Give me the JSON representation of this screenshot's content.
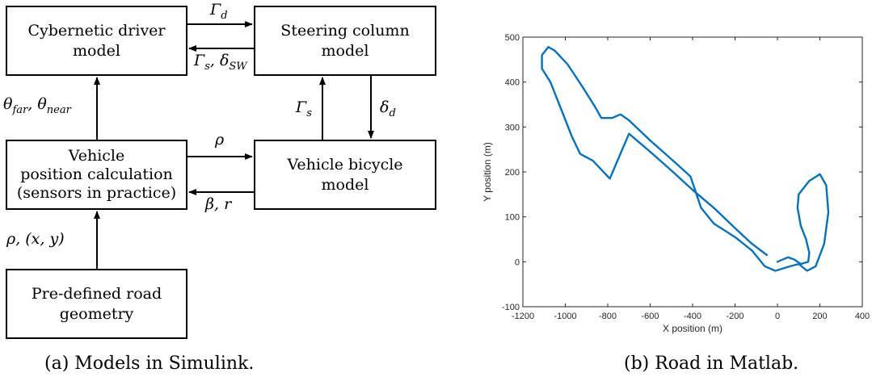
{
  "diagram": {
    "boxes": {
      "driver": "Cybernetic driver\nmodel",
      "steering": "Steering column\nmodel",
      "position": "Vehicle\nposition calculation\n(sensors in practice)",
      "bicycle": "Vehicle bicycle\nmodel",
      "road": "Pre-defined road\ngeometry"
    },
    "signals": {
      "gamma_d": "Γd",
      "gamma_s_delta_sw": "Γs, δSW",
      "theta": "θfar, θnear",
      "gamma_s": "Γs",
      "delta_d": "δd",
      "rho": "ρ",
      "beta_r": "β, r",
      "rho_xy": "ρ, (x, y)"
    },
    "caption": "(a) Models in Simulink."
  },
  "plot_caption": "(b) Road in Matlab.",
  "chart_data": {
    "type": "line",
    "title": "",
    "xlabel": "X position (m)",
    "ylabel": "Y position (m)",
    "xlim": [
      -1200,
      400
    ],
    "ylim": [
      -100,
      500
    ],
    "xticks": [
      -1200,
      -1000,
      -800,
      -600,
      -400,
      -200,
      0,
      200,
      400
    ],
    "yticks": [
      -100,
      0,
      100,
      200,
      300,
      400,
      500
    ],
    "grid": false,
    "series": [
      {
        "color": "#0072BD",
        "points": [
          [
            -50,
            15
          ],
          [
            -120,
            40
          ],
          [
            -200,
            75
          ],
          [
            -300,
            120
          ],
          [
            -400,
            160
          ],
          [
            -500,
            203
          ],
          [
            -600,
            245
          ],
          [
            -700,
            285
          ],
          [
            -790,
            185
          ],
          [
            -850,
            215
          ],
          [
            -870,
            225
          ],
          [
            -930,
            240
          ],
          [
            -970,
            280
          ],
          [
            -1020,
            340
          ],
          [
            -1070,
            400
          ],
          [
            -1110,
            430
          ],
          [
            -1110,
            460
          ],
          [
            -1080,
            478
          ],
          [
            -1050,
            470
          ],
          [
            -990,
            440
          ],
          [
            -920,
            390
          ],
          [
            -860,
            345
          ],
          [
            -830,
            320
          ],
          [
            -780,
            320
          ],
          [
            -740,
            328
          ],
          [
            -700,
            315
          ],
          [
            -600,
            270
          ],
          [
            -480,
            220
          ],
          [
            -410,
            190
          ],
          [
            -360,
            120
          ],
          [
            -300,
            85
          ],
          [
            -200,
            55
          ],
          [
            -120,
            25
          ],
          [
            -60,
            -10
          ],
          [
            -10,
            -20
          ],
          [
            60,
            -10
          ],
          [
            100,
            -5
          ],
          [
            140,
            -20
          ],
          [
            180,
            -10
          ],
          [
            220,
            40
          ],
          [
            240,
            110
          ],
          [
            230,
            170
          ],
          [
            200,
            195
          ],
          [
            150,
            180
          ],
          [
            100,
            150
          ],
          [
            95,
            120
          ],
          [
            110,
            80
          ],
          [
            135,
            50
          ],
          [
            150,
            20
          ],
          [
            145,
            0
          ],
          [
            110,
            -5
          ],
          [
            80,
            5
          ],
          [
            50,
            10
          ],
          [
            0,
            0
          ]
        ]
      }
    ]
  }
}
